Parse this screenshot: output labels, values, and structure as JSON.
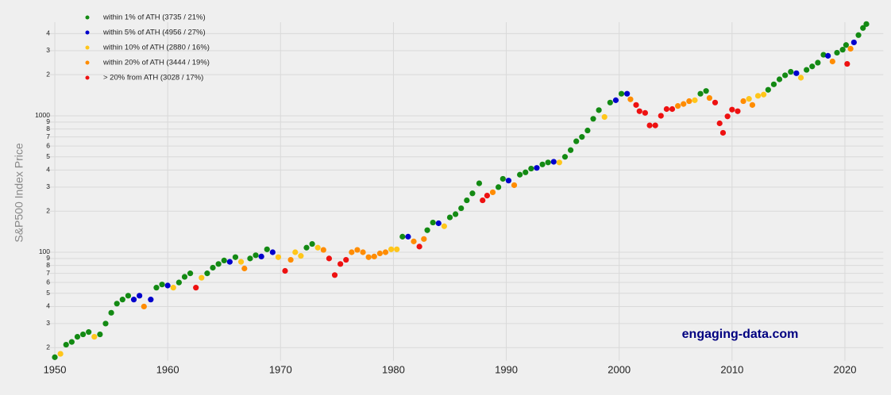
{
  "chart_data": {
    "type": "scatter",
    "ylabel": "S&P500 Index Price",
    "watermark": "engaging-data.com",
    "log_y": true,
    "grid": true,
    "legend": "upper left",
    "xlim": [
      1949.4,
      2023.4
    ],
    "xticks": [
      1950,
      1960,
      1970,
      1980,
      1990,
      2000,
      2010,
      2020
    ],
    "ylim": [
      16,
      4850
    ],
    "yticks": [
      {
        "value": 20,
        "label": "2"
      },
      {
        "value": 30,
        "label": "3"
      },
      {
        "value": 40,
        "label": "4"
      },
      {
        "value": 50,
        "label": "5"
      },
      {
        "value": 60,
        "label": "6"
      },
      {
        "value": 70,
        "label": "7"
      },
      {
        "value": 80,
        "label": "8"
      },
      {
        "value": 90,
        "label": "9"
      },
      100,
      {
        "value": 200,
        "label": "2"
      },
      {
        "value": 300,
        "label": "3"
      },
      {
        "value": 400,
        "label": "4"
      },
      {
        "value": 500,
        "label": "5"
      },
      {
        "value": 600,
        "label": "6"
      },
      {
        "value": 700,
        "label": "7"
      },
      {
        "value": 800,
        "label": "8"
      },
      {
        "value": 900,
        "label": "9"
      },
      1000,
      {
        "value": 2000,
        "label": "2"
      },
      {
        "value": 3000,
        "label": "3"
      },
      {
        "value": 4000,
        "label": "4"
      }
    ],
    "series": [
      {
        "name": "within 1% of ATH (3735 / 21%)",
        "color": "#138a13",
        "x": [
          1950.0,
          1951.0,
          1951.5,
          1952.0,
          1952.5,
          1953.0,
          1954.0,
          1954.5,
          1955.0,
          1955.5,
          1956.0,
          1956.5,
          1959.0,
          1959.5,
          1961.0,
          1961.5,
          1962.0,
          1963.5,
          1964.0,
          1964.5,
          1965.0,
          1966.0,
          1967.3,
          1967.8,
          1968.8,
          1972.3,
          1972.8,
          1980.8,
          1983.0,
          1983.5,
          1985.0,
          1985.5,
          1986.0,
          1986.5,
          1987.0,
          1987.6,
          1989.3,
          1989.7,
          1991.2,
          1991.7,
          1992.2,
          1993.2,
          1993.7,
          1995.2,
          1995.7,
          1996.2,
          1996.7,
          1997.2,
          1997.7,
          1998.2,
          1999.2,
          2000.2,
          2007.2,
          2007.7,
          2013.2,
          2013.7,
          2014.2,
          2014.7,
          2015.2,
          2016.6,
          2017.1,
          2017.6,
          2018.1,
          2019.3,
          2019.8,
          2020.1,
          2021.2,
          2021.6,
          2021.9
        ],
        "values": [
          17,
          21,
          22,
          24,
          25,
          26,
          25,
          30,
          36,
          42,
          45,
          48,
          55,
          58,
          60,
          66,
          70,
          70,
          77,
          82,
          87,
          92,
          90,
          95,
          105,
          108,
          115,
          130,
          145,
          165,
          180,
          190,
          210,
          240,
          270,
          320,
          300,
          345,
          370,
          385,
          410,
          440,
          455,
          500,
          560,
          650,
          700,
          780,
          950,
          1100,
          1250,
          1450,
          1450,
          1520,
          1550,
          1700,
          1850,
          1980,
          2100,
          2170,
          2300,
          2450,
          2800,
          2900,
          3050,
          3300,
          3900,
          4400,
          4700
        ]
      },
      {
        "name": "within 5% of ATH (4956 / 27%)",
        "color": "#0000cc",
        "x": [
          1957.0,
          1957.5,
          1958.5,
          1960.0,
          1965.5,
          1968.3,
          1969.3,
          1981.3,
          1984.0,
          1990.2,
          1992.7,
          1994.2,
          1999.7,
          2000.7,
          2015.7,
          2018.5,
          2020.8
        ],
        "values": [
          45,
          48,
          45,
          57,
          85,
          93,
          100,
          130,
          163,
          335,
          415,
          460,
          1300,
          1450,
          2050,
          2750,
          3450
        ]
      },
      {
        "name": "within 10% of ATH (2880 / 16%)",
        "color": "#ffc61a",
        "x": [
          1950.5,
          1953.5,
          1960.5,
          1963.0,
          1966.5,
          1969.8,
          1971.3,
          1971.8,
          1973.3,
          1979.8,
          1980.3,
          1984.5,
          1994.7,
          1998.7,
          2006.7,
          2011.5,
          2012.3,
          2012.8,
          2016.1
        ],
        "values": [
          18,
          24,
          55,
          65,
          85,
          92,
          100,
          94,
          108,
          105,
          105,
          155,
          455,
          980,
          1300,
          1330,
          1400,
          1430,
          1900
        ]
      },
      {
        "name": "within 20% of ATH (3444 / 19%)",
        "color": "#ff8c00",
        "x": [
          1957.9,
          1966.8,
          1970.9,
          1973.8,
          1976.3,
          1976.8,
          1977.3,
          1977.8,
          1978.3,
          1978.8,
          1979.3,
          1981.8,
          1982.7,
          1988.8,
          1990.7,
          2001.0,
          2005.2,
          2005.7,
          2006.2,
          2008.0,
          2011.0,
          2011.8,
          2018.9,
          2020.5
        ],
        "values": [
          40,
          76,
          88,
          104,
          100,
          104,
          100,
          92,
          93,
          98,
          100,
          120,
          125,
          275,
          310,
          1320,
          1180,
          1220,
          1280,
          1350,
          1280,
          1200,
          2500,
          3100
        ]
      },
      {
        "name": "> 20% from ATH (3028 / 17%)",
        "color": "#ee1111",
        "x": [
          1962.5,
          1970.4,
          1974.3,
          1974.8,
          1975.3,
          1975.8,
          1982.3,
          1987.9,
          1988.3,
          2001.5,
          2001.8,
          2002.3,
          2002.7,
          2003.2,
          2003.7,
          2004.2,
          2004.7,
          2008.5,
          2008.9,
          2009.2,
          2009.6,
          2010.0,
          2010.5,
          2020.2
        ],
        "values": [
          55,
          73,
          90,
          68,
          82,
          88,
          110,
          240,
          260,
          1200,
          1080,
          1050,
          850,
          850,
          1000,
          1120,
          1120,
          1250,
          880,
          750,
          990,
          1110,
          1080,
          2400
        ]
      }
    ]
  }
}
